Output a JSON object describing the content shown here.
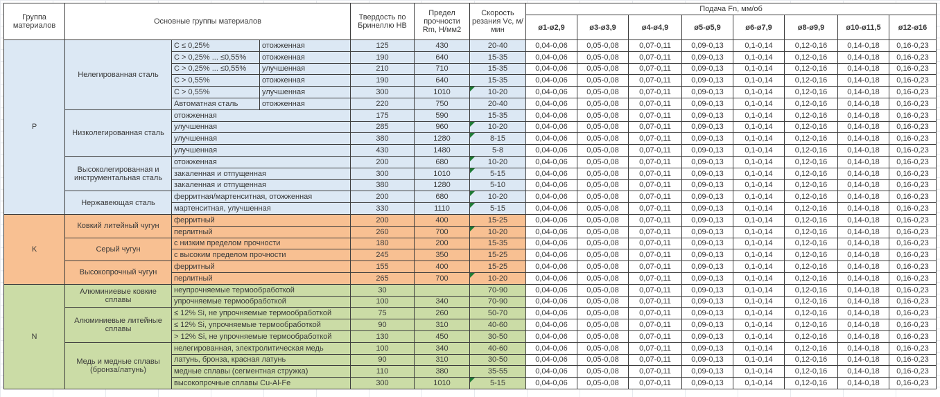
{
  "header": {
    "group": "Группа материалов",
    "material_groups": "Основные группы материалов",
    "hardness": "Твердость по Бринеллю HB",
    "strength": "Предел прочности Rm, Н/мм2",
    "cutting_speed": "Скорость резания Vc, м/мин",
    "feed": "Подача Fn, мм/об",
    "feed_columns": [
      "ø1-ø2,9",
      "ø3-ø3,9",
      "ø4-ø4,9",
      "ø5-ø5,9",
      "ø6-ø7,9",
      "ø8-ø9,9",
      "ø10-ø11,5",
      "ø12-ø16"
    ]
  },
  "feed_values": [
    "0,04-0,06",
    "0,05-0,08",
    "0,07-0,11",
    "0,09-0,13",
    "0,1-0,14",
    "0,12-0,16",
    "0,14-0,18",
    "0,16-0,23"
  ],
  "colors": {
    "p_group": "#dce8f4",
    "k_group": "#f8c092",
    "n_group": "#cbdca6",
    "error_flag": "#1e7a34"
  },
  "groups": [
    {
      "code": "P",
      "color_key": "p_group",
      "families": [
        {
          "name": "Нелегированная сталь",
          "rows": [
            {
              "detail": [
                "C ≤ 0,25%",
                "отожженная"
              ],
              "hb": "125",
              "rm": "430",
              "vc": "20-40",
              "flag": false
            },
            {
              "detail": [
                "C > 0,25% ... ≤0,55%",
                "отожженная"
              ],
              "hb": "190",
              "rm": "640",
              "vc": "15-35",
              "flag": false
            },
            {
              "detail": [
                "C > 0,25% ... ≤0,55%",
                "улучшенная"
              ],
              "hb": "210",
              "rm": "710",
              "vc": "15-35",
              "flag": false
            },
            {
              "detail": [
                "C > 0,55%",
                "отожженная"
              ],
              "hb": "190",
              "rm": "640",
              "vc": "15-35",
              "flag": false
            },
            {
              "detail": [
                "C > 0,55%",
                "улучшенная"
              ],
              "hb": "300",
              "rm": "1010",
              "vc": "10-20",
              "flag": true
            },
            {
              "detail": [
                "Автоматная сталь",
                "отожженная"
              ],
              "hb": "220",
              "rm": "750",
              "vc": "20-40",
              "flag": false
            }
          ]
        },
        {
          "name": "Низколегированная сталь",
          "rows": [
            {
              "detail": [
                "отожженная"
              ],
              "hb": "175",
              "rm": "590",
              "vc": "15-35",
              "flag": false
            },
            {
              "detail": [
                "улучшенная"
              ],
              "hb": "285",
              "rm": "960",
              "vc": "10-20",
              "flag": true
            },
            {
              "detail": [
                "улучшенная"
              ],
              "hb": "380",
              "rm": "1280",
              "vc": "8-15",
              "flag": true
            },
            {
              "detail": [
                "улучшенная"
              ],
              "hb": "430",
              "rm": "1480",
              "vc": "5-8",
              "flag": false
            }
          ]
        },
        {
          "name": "Высоколегированная и инструментальная сталь",
          "rows": [
            {
              "detail": [
                "отожженная"
              ],
              "hb": "200",
              "rm": "680",
              "vc": "10-20",
              "flag": true
            },
            {
              "detail": [
                "закаленная и отпущенная"
              ],
              "hb": "300",
              "rm": "1010",
              "vc": "5-15",
              "flag": true
            },
            {
              "detail": [
                "закаленная и отпущенная"
              ],
              "hb": "380",
              "rm": "1280",
              "vc": "5-10",
              "flag": false
            }
          ]
        },
        {
          "name": "Нержавеющая сталь",
          "rows": [
            {
              "detail": [
                "ферритная/мартенситная, отожженная"
              ],
              "hb": "200",
              "rm": "680",
              "vc": "10-20",
              "flag": true
            },
            {
              "detail": [
                "мартенситная, улучшенная"
              ],
              "hb": "330",
              "rm": "1110",
              "vc": "5-15",
              "flag": true
            }
          ]
        }
      ]
    },
    {
      "code": "K",
      "color_key": "k_group",
      "families": [
        {
          "name": "Ковкий литейный чугун",
          "rows": [
            {
              "detail": [
                "ферритный"
              ],
              "hb": "200",
              "rm": "400",
              "vc": "15-25",
              "flag": false
            },
            {
              "detail": [
                "перлитный"
              ],
              "hb": "260",
              "rm": "700",
              "vc": "10-20",
              "flag": true
            }
          ]
        },
        {
          "name": "Серый чугун",
          "rows": [
            {
              "detail": [
                "с низким пределом прочности"
              ],
              "hb": "180",
              "rm": "200",
              "vc": "15-35",
              "flag": false
            },
            {
              "detail": [
                "с высоким пределом прочности"
              ],
              "hb": "245",
              "rm": "350",
              "vc": "15-25",
              "flag": false
            }
          ]
        },
        {
          "name": "Высокопрочный чугун",
          "rows": [
            {
              "detail": [
                "ферритный"
              ],
              "hb": "155",
              "rm": "400",
              "vc": "15-25",
              "flag": false
            },
            {
              "detail": [
                "перлитный"
              ],
              "hb": "265",
              "rm": "700",
              "vc": "10-20",
              "flag": true
            }
          ]
        }
      ]
    },
    {
      "code": "N",
      "color_key": "n_group",
      "families": [
        {
          "name": "Алюминиевые ковкие сплавы",
          "rows": [
            {
              "detail": [
                "неупрочняемые термообработкой"
              ],
              "hb": "30",
              "rm": "",
              "vc": "70-90",
              "flag": false
            },
            {
              "detail": [
                "упрочняемые термообработкой"
              ],
              "hb": "100",
              "rm": "340",
              "vc": "70-90",
              "flag": false
            }
          ]
        },
        {
          "name": "Алюминиевые литейные сплавы",
          "rows": [
            {
              "detail": [
                "≤ 12% Si, не упрочняемые термообработкой"
              ],
              "hb": "75",
              "rm": "260",
              "vc": "50-70",
              "flag": false
            },
            {
              "detail": [
                "≤ 12% Si, упрочняемые термообработкой"
              ],
              "hb": "90",
              "rm": "310",
              "vc": "40-60",
              "flag": false
            },
            {
              "detail": [
                "> 12% Si, не упрочняемые термообработкой"
              ],
              "hb": "130",
              "rm": "450",
              "vc": "30-50",
              "flag": false
            }
          ]
        },
        {
          "name": "Медь и медные сплавы (бронза/латунь)",
          "rows": [
            {
              "detail": [
                "нелегированная, электролитическая медь"
              ],
              "hb": "100",
              "rm": "340",
              "vc": "40-60",
              "flag": false
            },
            {
              "detail": [
                "латунь, бронза, красная латунь"
              ],
              "hb": "90",
              "rm": "310",
              "vc": "30-50",
              "flag": false
            },
            {
              "detail": [
                "медные сплавы (сегментная стружка)"
              ],
              "hb": "110",
              "rm": "380",
              "vc": "35-55",
              "flag": false
            },
            {
              "detail": [
                "высокопрочные сплавы Cu-Al-Fe"
              ],
              "hb": "300",
              "rm": "1010",
              "vc": "5-15",
              "flag": true
            }
          ]
        }
      ]
    }
  ]
}
